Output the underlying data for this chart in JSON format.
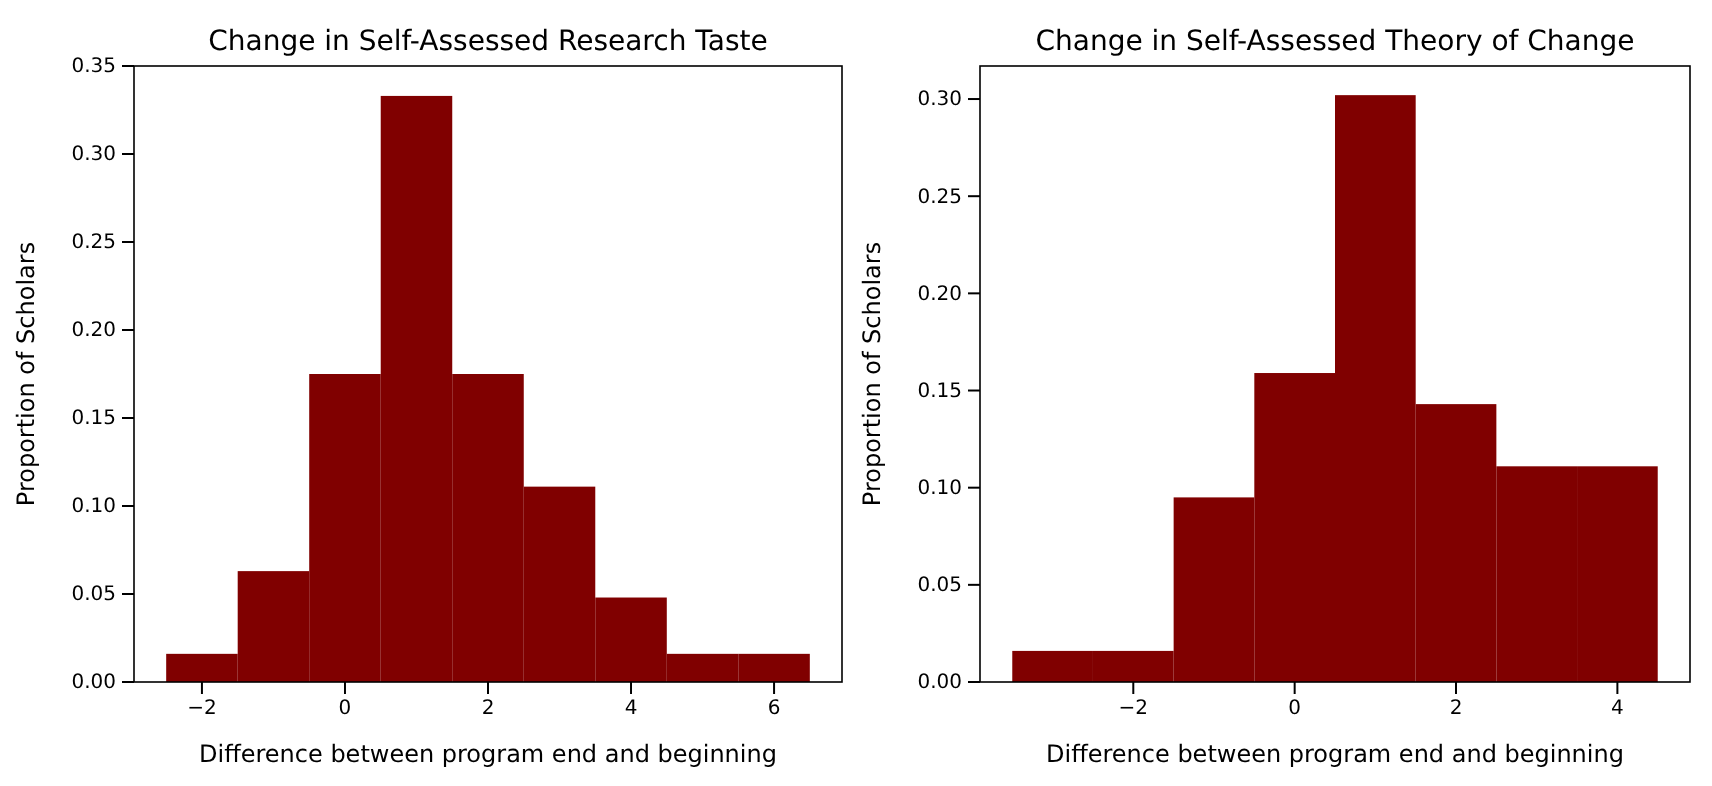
{
  "chart_data": [
    {
      "type": "histogram",
      "title": "Change in Self-Assessed Research Taste",
      "xlabel": "Difference between program end and beginning",
      "ylabel": "Proportion of Scholars",
      "color": "#800000",
      "bins": [
        -2.5,
        -1.5,
        -0.5,
        0.5,
        1.5,
        2.5,
        3.5,
        4.5,
        5.5,
        6.5
      ],
      "values": [
        0.016,
        0.063,
        0.175,
        0.333,
        0.175,
        0.111,
        0.048,
        0.016,
        0.016
      ],
      "xlim": [
        -2.95,
        6.95
      ],
      "xticks": [
        {
          "value": -2,
          "label": "−2"
        },
        0,
        2,
        4,
        6
      ],
      "ylim": [
        0,
        0.35
      ],
      "yticks": [
        {
          "value": 0,
          "label": "0.00"
        },
        {
          "value": 0.05,
          "label": "0.05"
        },
        {
          "value": 0.1,
          "label": "0.10"
        },
        {
          "value": 0.15,
          "label": "0.15"
        },
        {
          "value": 0.2,
          "label": "0.20"
        },
        {
          "value": 0.25,
          "label": "0.25"
        },
        {
          "value": 0.3,
          "label": "0.30"
        },
        {
          "value": 0.35,
          "label": "0.35"
        }
      ]
    },
    {
      "type": "histogram",
      "title": "Change in Self-Assessed Theory of Change",
      "xlabel": "Difference between program end and beginning",
      "ylabel": "Proportion of Scholars",
      "color": "#800000",
      "bins": [
        -3.5,
        -2.5,
        -1.5,
        -0.5,
        0.5,
        1.5,
        2.5,
        3.5,
        4.5
      ],
      "values": [
        0.016,
        0.016,
        0.095,
        0.159,
        0.302,
        0.143,
        0.111,
        0.111
      ],
      "xlim": [
        -3.9,
        4.9
      ],
      "xticks": [
        {
          "value": -2,
          "label": "−2"
        },
        0,
        2,
        4
      ],
      "ylim": [
        0,
        0.317
      ],
      "yticks": [
        {
          "value": 0,
          "label": "0.00"
        },
        {
          "value": 0.05,
          "label": "0.05"
        },
        {
          "value": 0.1,
          "label": "0.10"
        },
        {
          "value": 0.15,
          "label": "0.15"
        },
        {
          "value": 0.2,
          "label": "0.20"
        },
        {
          "value": 0.25,
          "label": "0.25"
        },
        {
          "value": 0.3,
          "label": "0.30"
        }
      ]
    }
  ]
}
